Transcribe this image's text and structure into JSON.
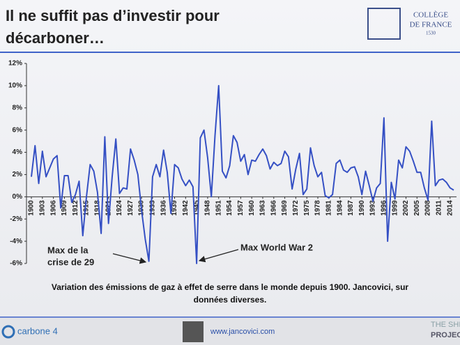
{
  "header": {
    "title": [
      "Il ne suffit pas d’investir pour",
      "décarboner…"
    ],
    "logo": [
      "COLLÈGE",
      "DE FRANCE",
      "1530"
    ]
  },
  "chart_data": {
    "type": "line",
    "x": [
      1900,
      1901,
      1902,
      1903,
      1904,
      1905,
      1906,
      1907,
      1908,
      1909,
      1910,
      1911,
      1912,
      1913,
      1914,
      1915,
      1916,
      1917,
      1918,
      1919,
      1920,
      1921,
      1922,
      1923,
      1924,
      1925,
      1926,
      1927,
      1928,
      1929,
      1930,
      1931,
      1932,
      1933,
      1934,
      1935,
      1936,
      1937,
      1938,
      1939,
      1940,
      1941,
      1942,
      1943,
      1944,
      1945,
      1946,
      1947,
      1948,
      1949,
      1950,
      1951,
      1952,
      1953,
      1954,
      1955,
      1956,
      1957,
      1958,
      1959,
      1960,
      1961,
      1962,
      1963,
      1964,
      1965,
      1966,
      1967,
      1968,
      1969,
      1970,
      1971,
      1972,
      1973,
      1974,
      1975,
      1976,
      1977,
      1978,
      1979,
      1980,
      1981,
      1982,
      1983,
      1984,
      1985,
      1986,
      1987,
      1988,
      1989,
      1990,
      1991,
      1992,
      1993,
      1994,
      1995,
      1996,
      1997,
      1998,
      1999,
      2000,
      2001,
      2002,
      2003,
      2004,
      2005,
      2006,
      2007,
      2008,
      2009,
      2010,
      2011,
      2012,
      2013,
      2014,
      2015
    ],
    "series": [
      {
        "color": "#3550c4",
        "values": [
          1.8,
          4.6,
          1.2,
          4.1,
          1.8,
          2.6,
          3.4,
          3.7,
          -1.0,
          1.9,
          1.9,
          -0.5,
          0.2,
          1.4,
          -3.5,
          0.0,
          2.9,
          2.3,
          0.4,
          -3.3,
          5.4,
          -2.4,
          1.8,
          5.2,
          0.3,
          0.8,
          0.7,
          4.3,
          3.3,
          2.0,
          -1.2,
          -3.8,
          -5.8,
          1.8,
          2.9,
          1.8,
          4.2,
          2.2,
          -1.5,
          2.9,
          2.6,
          1.6,
          1.0,
          1.5,
          0.9,
          -6.0,
          5.3,
          6.0,
          3.5,
          0.0,
          5.5,
          10.0,
          2.3,
          1.7,
          2.8,
          5.5,
          4.9,
          3.2,
          3.8,
          2.0,
          3.3,
          3.2,
          3.8,
          4.3,
          3.7,
          2.5,
          3.1,
          2.8,
          3.0,
          4.1,
          3.6,
          0.7,
          2.5,
          3.9,
          0.2,
          0.7,
          4.4,
          2.8,
          1.8,
          2.2,
          0.1,
          -0.1,
          0.2,
          3.0,
          3.3,
          2.4,
          2.2,
          2.6,
          2.7,
          1.8,
          0.2,
          2.3,
          1.0,
          -0.4,
          0.8,
          1.2,
          7.1,
          -4.0,
          1.3,
          -0.2,
          3.3,
          2.6,
          4.5,
          4.1,
          3.2,
          2.2,
          2.2,
          0.8,
          -0.3,
          6.8,
          1.0,
          1.5,
          1.6,
          1.3,
          0.8,
          0.6
        ]
      }
    ],
    "xlim": [
      1900,
      2015
    ],
    "xticks": [
      1900,
      1903,
      1906,
      1909,
      1912,
      1915,
      1918,
      1921,
      1924,
      1927,
      1930,
      1933,
      1936,
      1939,
      1942,
      1945,
      1948,
      1951,
      1954,
      1957,
      1960,
      1963,
      1966,
      1969,
      1972,
      1975,
      1978,
      1981,
      1984,
      1987,
      1990,
      1993,
      1996,
      1999,
      2002,
      2005,
      2008,
      2011,
      2014
    ],
    "ylim": [
      -6,
      12
    ],
    "yticks": [
      {
        "value": -6,
        "label": "-6%"
      },
      {
        "value": -4,
        "label": "-4%"
      },
      {
        "value": -2,
        "label": "-2%"
      },
      {
        "value": 0,
        "label": "0%"
      },
      {
        "value": 2,
        "label": "2%"
      },
      {
        "value": 4,
        "label": "4%"
      },
      {
        "value": 6,
        "label": "6%"
      },
      {
        "value": 8,
        "label": "8%"
      },
      {
        "value": 10,
        "label": "10%"
      },
      {
        "value": 12,
        "label": "12%"
      }
    ],
    "annotations": [
      [
        "Max de la",
        "crise de 29"
      ],
      [
        "Max World War 2"
      ]
    ]
  },
  "caption": [
    "Variation des émissions de gaz à effet de serre dans le monde depuis 1900. Jancovici, sur",
    "données diverses."
  ],
  "footer": {
    "left": "carbone 4",
    "center": "www.jancovici.com",
    "right": [
      "THE SHIFT",
      "PROJECT"
    ]
  }
}
